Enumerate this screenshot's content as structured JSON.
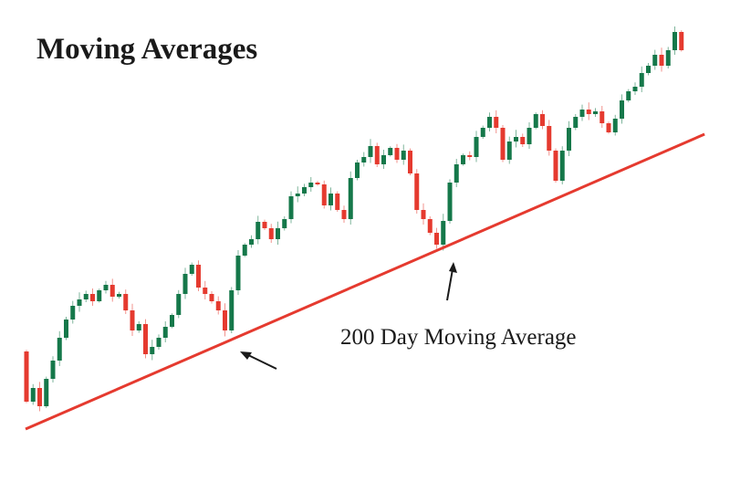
{
  "chart_data": {
    "type": "candlestick",
    "title": "Moving Averages",
    "xlabel": "",
    "ylabel": "",
    "grid": false,
    "first_open": 115,
    "closes": [
      60,
      75,
      55,
      85,
      105,
      130,
      150,
      165,
      172,
      178,
      170,
      182,
      188,
      175,
      178,
      160,
      138,
      145,
      112,
      120,
      130,
      142,
      155,
      178,
      200,
      210,
      185,
      178,
      170,
      160,
      138,
      182,
      220,
      232,
      238,
      257,
      250,
      238,
      250,
      260,
      285,
      288,
      295,
      300,
      298,
      275,
      288,
      270,
      260,
      305,
      322,
      328,
      340,
      320,
      330,
      338,
      325,
      335,
      310,
      270,
      260,
      245,
      232,
      258,
      300,
      320,
      330,
      328,
      350,
      360,
      372,
      360,
      325,
      345,
      350,
      342,
      360,
      375,
      362,
      335,
      302,
      335,
      360,
      372,
      380,
      375,
      378,
      365,
      355,
      370,
      390,
      400,
      405,
      420,
      428,
      440,
      428,
      445,
      465,
      445
    ],
    "series": [
      {
        "name": "200 Day Moving Average",
        "type": "line",
        "points": [
          {
            "i": 0,
            "v": 30
          },
          {
            "i": 102.5,
            "v": 353
          }
        ],
        "color": "#e53a2f"
      }
    ],
    "annotations": [
      "200 Day Moving Average"
    ],
    "colors": {
      "up": "#15784a",
      "down": "#e53a2f",
      "ma": "#e53a2f",
      "arrow": "#1a1a1a"
    }
  }
}
